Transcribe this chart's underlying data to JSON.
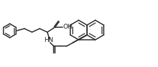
{
  "background": "#ffffff",
  "line_color": "#2a2a2a",
  "lw": 1.1,
  "figsize": [
    2.28,
    0.96
  ],
  "dpi": 100
}
